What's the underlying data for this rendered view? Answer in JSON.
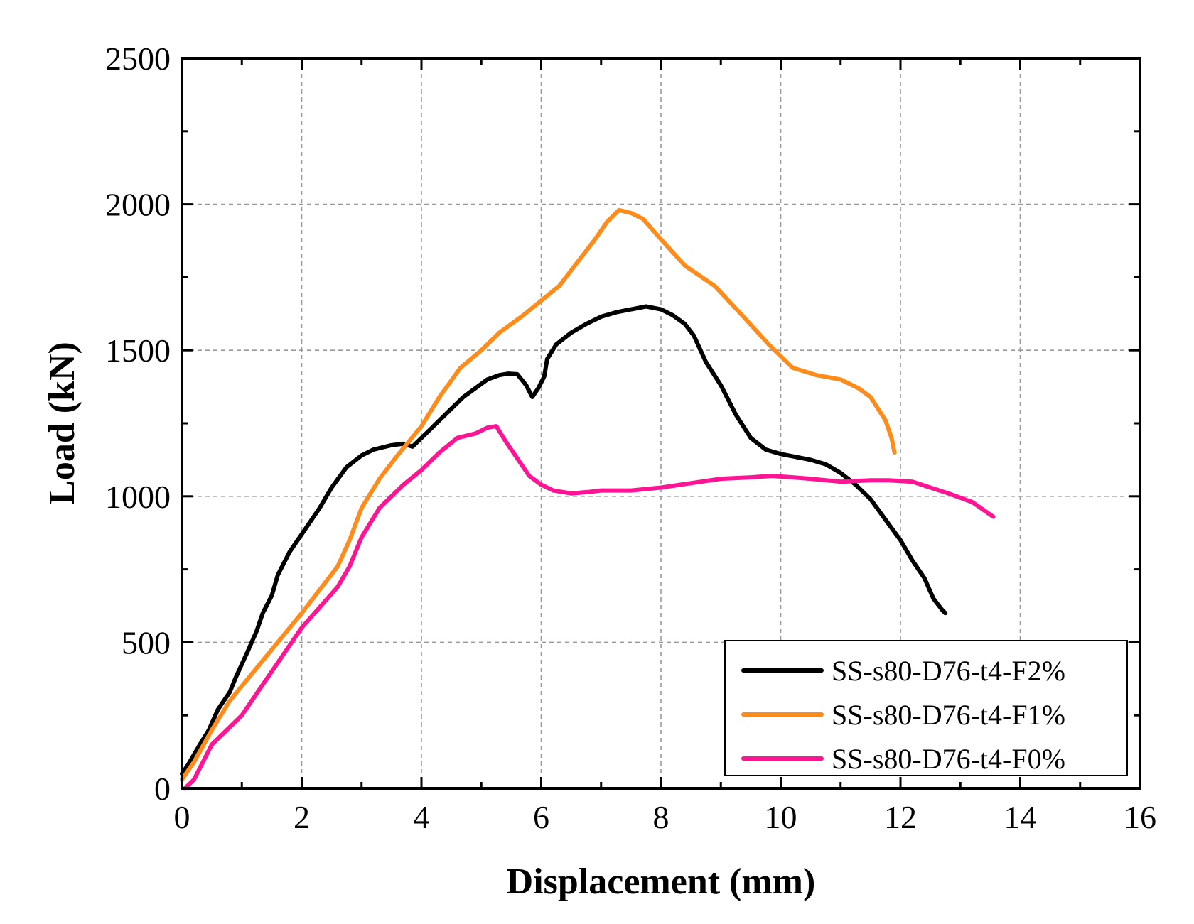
{
  "chart_data": {
    "type": "line",
    "title": "",
    "xlabel": "Displacement (mm)",
    "ylabel": "Load (kN)",
    "xlim": [
      0,
      16
    ],
    "ylim": [
      0,
      2500
    ],
    "xticks": [
      0,
      2,
      4,
      6,
      8,
      10,
      12,
      14,
      16
    ],
    "yticks": [
      0,
      500,
      1000,
      1500,
      2000,
      2500
    ],
    "xtick_labels": [
      "0",
      "2",
      "4",
      "6",
      "8",
      "10",
      "12",
      "14",
      "16"
    ],
    "ytick_labels": [
      "0",
      "500",
      "1000",
      "1500",
      "2000",
      "2500"
    ],
    "grid": true,
    "legend_position": "bottom-right",
    "series": [
      {
        "name": "SS-s80-D76-t4-F2%",
        "color": "#000000",
        "x": [
          0,
          0.1,
          0.3,
          0.45,
          0.6,
          0.8,
          0.9,
          1.1,
          1.25,
          1.35,
          1.5,
          1.6,
          1.8,
          2.0,
          2.3,
          2.5,
          2.75,
          3.0,
          3.2,
          3.5,
          3.7,
          3.85,
          4.0,
          4.2,
          4.5,
          4.7,
          4.9,
          5.1,
          5.3,
          5.45,
          5.6,
          5.75,
          5.85,
          5.95,
          6.05,
          6.1,
          6.25,
          6.5,
          6.75,
          7.0,
          7.25,
          7.5,
          7.75,
          8.0,
          8.2,
          8.4,
          8.55,
          8.75,
          9.0,
          9.25,
          9.5,
          9.75,
          10.0,
          10.25,
          10.5,
          10.75,
          11.0,
          11.25,
          11.5,
          11.75,
          12.0,
          12.2,
          12.4,
          12.55,
          12.7,
          12.75
        ],
        "y": [
          50,
          80,
          150,
          200,
          270,
          330,
          380,
          470,
          540,
          600,
          660,
          730,
          810,
          870,
          960,
          1030,
          1100,
          1140,
          1160,
          1175,
          1180,
          1170,
          1200,
          1240,
          1300,
          1340,
          1370,
          1400,
          1415,
          1420,
          1418,
          1380,
          1340,
          1370,
          1410,
          1470,
          1520,
          1560,
          1590,
          1615,
          1630,
          1640,
          1650,
          1640,
          1620,
          1590,
          1550,
          1460,
          1380,
          1280,
          1200,
          1160,
          1145,
          1135,
          1125,
          1110,
          1080,
          1040,
          990,
          920,
          850,
          780,
          720,
          650,
          610,
          600
        ]
      },
      {
        "name": "SS-s80-D76-t4-F1%",
        "color": "#FF8C1A",
        "x": [
          0,
          0.2,
          0.5,
          0.8,
          1.2,
          1.6,
          2.0,
          2.3,
          2.6,
          2.8,
          3.0,
          3.3,
          3.6,
          4.0,
          4.3,
          4.65,
          5.0,
          5.3,
          5.7,
          6.0,
          6.3,
          6.6,
          6.9,
          7.1,
          7.3,
          7.5,
          7.7,
          8.0,
          8.4,
          8.9,
          9.4,
          9.8,
          10.2,
          10.6,
          11.0,
          11.3,
          11.5,
          11.75,
          11.85,
          11.9
        ],
        "y": [
          30,
          90,
          200,
          300,
          400,
          500,
          600,
          680,
          760,
          850,
          960,
          1060,
          1140,
          1240,
          1340,
          1440,
          1500,
          1560,
          1620,
          1670,
          1720,
          1800,
          1880,
          1940,
          1980,
          1970,
          1950,
          1880,
          1790,
          1720,
          1610,
          1520,
          1440,
          1415,
          1400,
          1370,
          1340,
          1260,
          1200,
          1150
        ]
      },
      {
        "name": "SS-s80-D76-t4-F0%",
        "color": "#FF1493",
        "x": [
          0.05,
          0.2,
          0.5,
          1.0,
          1.3,
          1.6,
          2.0,
          2.3,
          2.6,
          2.8,
          3.0,
          3.3,
          3.7,
          4.0,
          4.3,
          4.6,
          4.9,
          5.1,
          5.25,
          5.4,
          5.6,
          5.8,
          6.0,
          6.2,
          6.5,
          6.8,
          7.0,
          7.5,
          8.0,
          8.5,
          9.0,
          9.5,
          9.85,
          10.2,
          10.5,
          11.0,
          11.5,
          11.8,
          12.2,
          12.5,
          12.8,
          13.2,
          13.55
        ],
        "y": [
          0,
          30,
          150,
          250,
          340,
          430,
          550,
          620,
          690,
          760,
          860,
          960,
          1040,
          1090,
          1150,
          1200,
          1215,
          1235,
          1240,
          1190,
          1130,
          1070,
          1040,
          1020,
          1010,
          1015,
          1020,
          1020,
          1030,
          1045,
          1060,
          1065,
          1070,
          1065,
          1060,
          1050,
          1055,
          1055,
          1050,
          1030,
          1010,
          980,
          930
        ]
      }
    ]
  }
}
